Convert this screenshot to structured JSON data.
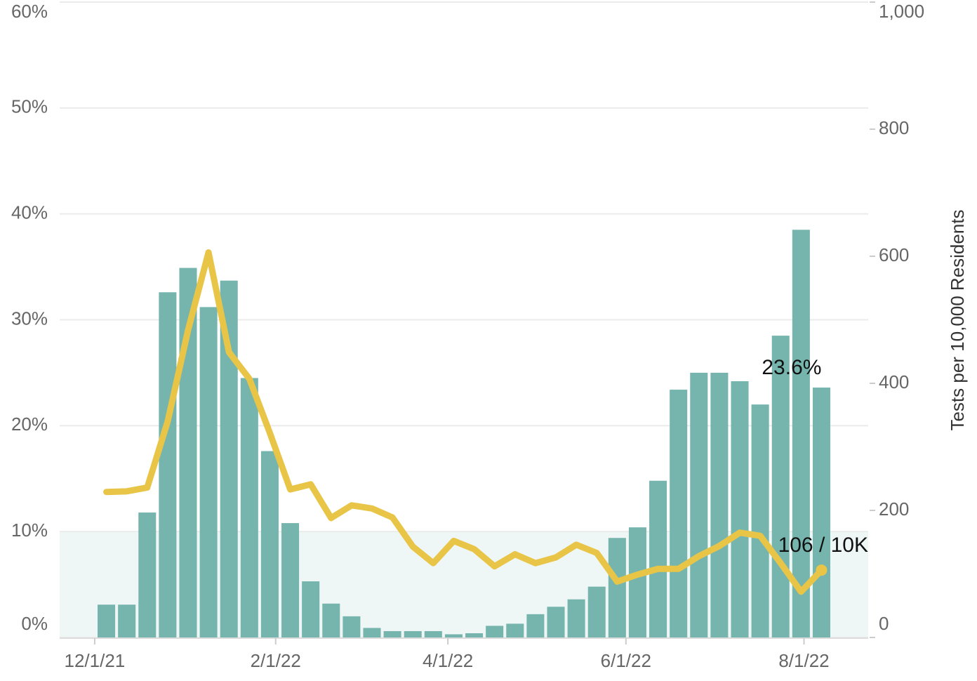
{
  "chart_data": {
    "type": "bar-line",
    "x": [
      "12/5/21",
      "12/12/21",
      "12/19/21",
      "12/26/21",
      "1/2/22",
      "1/9/22",
      "1/16/22",
      "1/23/22",
      "1/30/22",
      "2/6/22",
      "2/13/22",
      "2/20/22",
      "2/27/22",
      "3/6/22",
      "3/13/22",
      "3/20/22",
      "3/27/22",
      "4/3/22",
      "4/10/22",
      "4/17/22",
      "4/24/22",
      "5/1/22",
      "5/8/22",
      "5/15/22",
      "5/22/22",
      "5/29/22",
      "6/5/22",
      "6/12/22",
      "6/19/22",
      "6/26/22",
      "7/3/22",
      "7/10/22",
      "7/17/22",
      "7/24/22",
      "7/31/22",
      "8/7/22"
    ],
    "xlim": [
      "11/19/21",
      "8/23/22"
    ],
    "xticks": [
      "12/1/21",
      "2/1/22",
      "4/1/22",
      "6/1/22",
      "8/1/22"
    ],
    "series": [
      {
        "type": "bar",
        "color": "#76b5ae",
        "values": [
          3.1,
          3.1,
          11.8,
          32.6,
          34.9,
          31.2,
          33.7,
          24.5,
          17.6,
          10.8,
          5.3,
          3.2,
          2.0,
          0.9,
          0.6,
          0.6,
          0.6,
          0.3,
          0.4,
          1.1,
          1.3,
          2.2,
          2.9,
          3.6,
          4.8,
          9.4,
          10.4,
          14.8,
          23.4,
          25.0,
          25.0,
          24.2,
          22.0,
          28.5,
          38.5,
          23.6
        ],
        "value_labels": [
          null,
          null,
          null,
          null,
          null,
          null,
          null,
          null,
          null,
          null,
          null,
          null,
          null,
          null,
          null,
          null,
          null,
          null,
          null,
          null,
          null,
          null,
          null,
          null,
          null,
          null,
          null,
          null,
          null,
          null,
          null,
          null,
          null,
          null,
          null,
          "23.6%"
        ]
      },
      {
        "type": "line",
        "axis": "y2",
        "color": "#e8c547",
        "values": [
          229,
          230,
          236,
          340,
          484,
          606,
          449,
          407,
          322,
          233,
          241,
          188,
          208,
          203,
          189,
          143,
          117,
          152,
          139,
          112,
          131,
          117,
          126,
          146,
          133,
          88,
          99,
          108,
          108,
          128,
          144,
          165,
          160,
          117,
          72,
          106
        ],
        "value_labels": [
          null,
          null,
          null,
          null,
          null,
          null,
          null,
          null,
          null,
          null,
          null,
          null,
          null,
          null,
          null,
          null,
          null,
          null,
          null,
          null,
          null,
          null,
          null,
          null,
          null,
          null,
          null,
          null,
          null,
          null,
          null,
          null,
          null,
          null,
          null,
          "106 / 10K"
        ]
      }
    ],
    "ylim": [
      0,
      60
    ],
    "yticks": [
      {
        "value": 0,
        "label": "0%"
      },
      {
        "value": 10,
        "label": "10%"
      },
      {
        "value": 20,
        "label": "20%"
      },
      {
        "value": 30,
        "label": "30%"
      },
      {
        "value": 40,
        "label": "40%"
      },
      {
        "value": 50,
        "label": "50%"
      },
      {
        "value": 60,
        "label": "60%"
      }
    ],
    "y2lim": [
      0,
      1000
    ],
    "y2ticks": [
      0,
      200,
      400,
      600,
      800,
      {
        "value": 1000,
        "label": "1,000"
      }
    ],
    "y2label": "Tests per 10,000 Residents",
    "highlight_range": [
      0,
      10
    ],
    "highlight_color": "#eef7f5",
    "grid": true
  }
}
